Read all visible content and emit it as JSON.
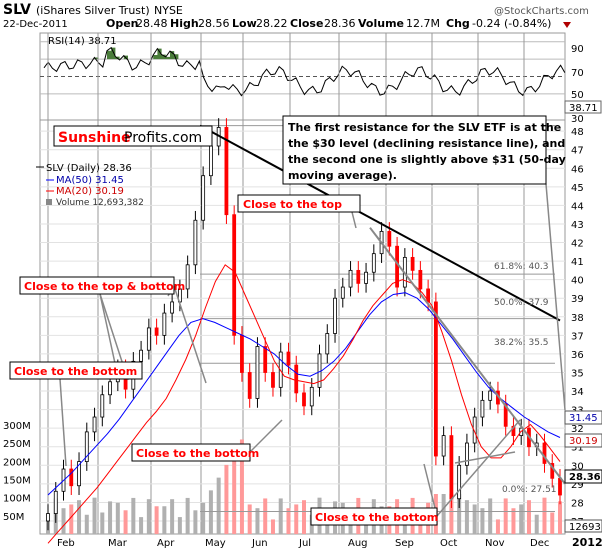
{
  "header": {
    "symbol": "SLV",
    "name": "(iShares Silver Trust)",
    "exchange": "NYSE",
    "watermark": "@StockCharts.com",
    "date": "22-Dec-2011",
    "open_label": "Open",
    "open": "28.48",
    "high_label": "High",
    "high": "28.56",
    "low_label": "Low",
    "low": "28.22",
    "close_label": "Close",
    "close": "28.36",
    "volume_label": "Volume",
    "volume": "12.7M",
    "chg_label": "Chg",
    "chg": "-0.24 (-0.84%)"
  },
  "logo": {
    "part1": "Sunshine",
    "part2": "Profits.com"
  },
  "rsi": {
    "label": "RSI(14) 38.71",
    "last": "38.71",
    "ticks": [
      "90",
      "70",
      "50",
      "30"
    ],
    "levels": [
      90,
      70,
      50,
      30
    ]
  },
  "legend": {
    "price": "SLV (Daily) 28.36",
    "ma50": "MA(50) 31.45",
    "ma20": "MA(20) 30.19",
    "volume": "Volume 12,693,382"
  },
  "note": {
    "lines": [
      "The first resistance for the SLV ETF is at the",
      "the $30 level (declining resistance line), and",
      "the second one is slightly above $31 (50-day",
      "moving average)."
    ]
  },
  "annotations": {
    "close_to_top": "Close to the top",
    "close_to_top_bottom": "Close to the top & bottom",
    "close_to_bottom_left": "Close to the bottom",
    "close_to_bottom_mid": "Close to the bottom",
    "close_to_bottom_right": "Close to the bottom"
  },
  "fib": {
    "f618": "61.8%: 40.3",
    "f500": "50.0%: 37.9",
    "f382": "38.2%: 35.5",
    "f000": "0.0%: 27.51"
  },
  "colors": {
    "price": "#000000",
    "up_candle": "#000000",
    "down_candle": "#ff0000",
    "ma50": "#0000ff",
    "ma20": "#ff0000",
    "rsi_fill": "#4a7d3a",
    "annotation_text": "#ff0000",
    "volume_up": "#b0b0b0",
    "volume_down": "#ff9999"
  },
  "chart_data": {
    "type": "candlestick",
    "x_axis": {
      "labels": [
        "Feb",
        "Mar",
        "Apr",
        "May",
        "Jun",
        "Jul",
        "Aug",
        "Sep",
        "Oct",
        "Nov",
        "Dec",
        "2012"
      ]
    },
    "y_axis_price": {
      "ticks": [
        "48",
        "47",
        "46",
        "45",
        "44",
        "43",
        "42",
        "41",
        "40",
        "39",
        "38",
        "37",
        "36",
        "35",
        "34",
        "33",
        "32",
        "31",
        "30",
        "29",
        "28",
        "27"
      ],
      "range": [
        26.3,
        48.6
      ]
    },
    "y_axis_volume": {
      "ticks": [
        "300M",
        "250M",
        "200M",
        "150M",
        "100M",
        "50M"
      ],
      "range": [
        0,
        330
      ]
    },
    "price_markers": {
      "ma50": "31.45",
      "ma20": "30.19",
      "last": "28.36",
      "volume": "12693"
    },
    "price_close": [
      27.4,
      28.6,
      29.8,
      28.9,
      30.2,
      31.8,
      32.6,
      33.8,
      34.5,
      35.2,
      34.1,
      35.6,
      36.2,
      37.4,
      37.0,
      38.2,
      38.8,
      39.5,
      40.8,
      43.2,
      45.6,
      47.2,
      48.2,
      43.5,
      37.0,
      35.0,
      33.6,
      36.4,
      35.0,
      34.2,
      36.1,
      35.4,
      33.9,
      33.2,
      34.2,
      36.0,
      37.1,
      39.0,
      39.6,
      40.5,
      39.8,
      40.4,
      41.4,
      42.6,
      41.8,
      39.6,
      41.2,
      40.5,
      39.5,
      38.8,
      30.5,
      31.6,
      28.2,
      30.0,
      31.2,
      32.6,
      33.5,
      34.0,
      33.3,
      32.1,
      31.6,
      32.0,
      31.0,
      31.2,
      30.1,
      29.3,
      28.4
    ],
    "ma20": [
      25.8,
      26.4,
      27.0,
      27.6,
      28.2,
      28.8,
      29.5,
      30.2,
      30.9,
      31.6,
      32.3,
      32.9,
      33.6,
      34.6,
      35.7,
      37.0,
      38.5,
      39.9,
      40.8,
      40.4,
      39.2,
      38.0,
      36.8,
      35.6,
      34.8,
      34.6,
      34.5,
      34.4,
      34.6,
      35.2,
      35.9,
      36.8,
      37.8,
      38.6,
      39.2,
      39.8,
      40.0,
      39.8,
      39.3,
      38.6,
      37.2,
      35.6,
      33.8,
      32.2,
      31.0,
      30.4,
      30.4,
      31.0,
      31.8,
      32.2,
      31.6,
      30.9,
      30.2
    ],
    "ma50": [
      28.4,
      29.0,
      29.6,
      30.3,
      31.0,
      31.7,
      32.5,
      33.4,
      34.3,
      35.2,
      36.1,
      37.0,
      37.7,
      37.9,
      37.7,
      37.4,
      37.1,
      36.8,
      36.4,
      36.0,
      35.4,
      34.9,
      34.8,
      35.1,
      35.6,
      36.3,
      37.2,
      38.1,
      38.8,
      39.2,
      39.3,
      39.0,
      38.4,
      37.6,
      36.8,
      35.9,
      35.0,
      34.2,
      33.6,
      33.1,
      32.6,
      32.2,
      31.8,
      31.5
    ],
    "resistance_lines": [
      {
        "from": [
          48.3,
          "Apr end"
        ],
        "to": [
          38.0,
          "Dec end"
        ]
      },
      {
        "from": [
          42.8,
          "Aug end"
        ],
        "to": [
          29.1,
          "Dec end"
        ]
      }
    ],
    "fibonacci_levels": [
      {
        "label": "61.8%",
        "value": 40.3
      },
      {
        "label": "50.0%",
        "value": 37.9
      },
      {
        "label": "38.2%",
        "value": 35.5
      },
      {
        "label": "0.0%",
        "value": 27.51
      }
    ],
    "last_close": 28.36
  }
}
